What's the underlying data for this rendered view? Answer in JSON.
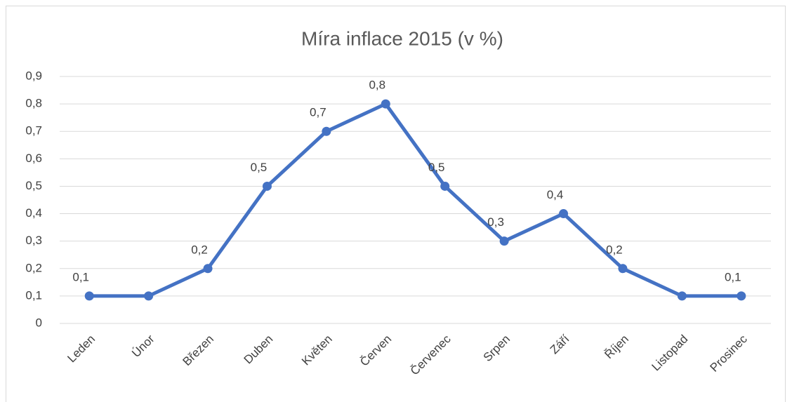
{
  "chart_data": {
    "type": "line",
    "title": "Míra inflace 2015 (v %)",
    "categories": [
      "Leden",
      "Únor",
      "Březen",
      "Duben",
      "Květen",
      "Červen",
      "Červenec",
      "Srpen",
      "Září",
      "Říjen",
      "Listopad",
      "Prosinec"
    ],
    "values": [
      0.1,
      0.1,
      0.2,
      0.5,
      0.7,
      0.8,
      0.5,
      0.3,
      0.4,
      0.2,
      0.1,
      0.1
    ],
    "value_labels": [
      "0,1",
      null,
      "0,2",
      "0,5",
      "0,7",
      "0,8",
      "0,5",
      "0,3",
      "0,4",
      "0,2",
      null,
      "0,1"
    ],
    "color": "#4472c4",
    "ylim": [
      0,
      0.9
    ],
    "yticks": [
      0,
      {
        "value": 0.1,
        "label": "0,1"
      },
      {
        "value": 0.2,
        "label": "0,2"
      },
      {
        "value": 0.3,
        "label": "0,3"
      },
      {
        "value": 0.4,
        "label": "0,4"
      },
      {
        "value": 0.5,
        "label": "0,5"
      },
      {
        "value": 0.6,
        "label": "0,6"
      },
      {
        "value": 0.7,
        "label": "0,7"
      },
      {
        "value": 0.8,
        "label": "0,8"
      },
      {
        "value": 0.9,
        "label": "0,9"
      }
    ],
    "grid": true
  }
}
